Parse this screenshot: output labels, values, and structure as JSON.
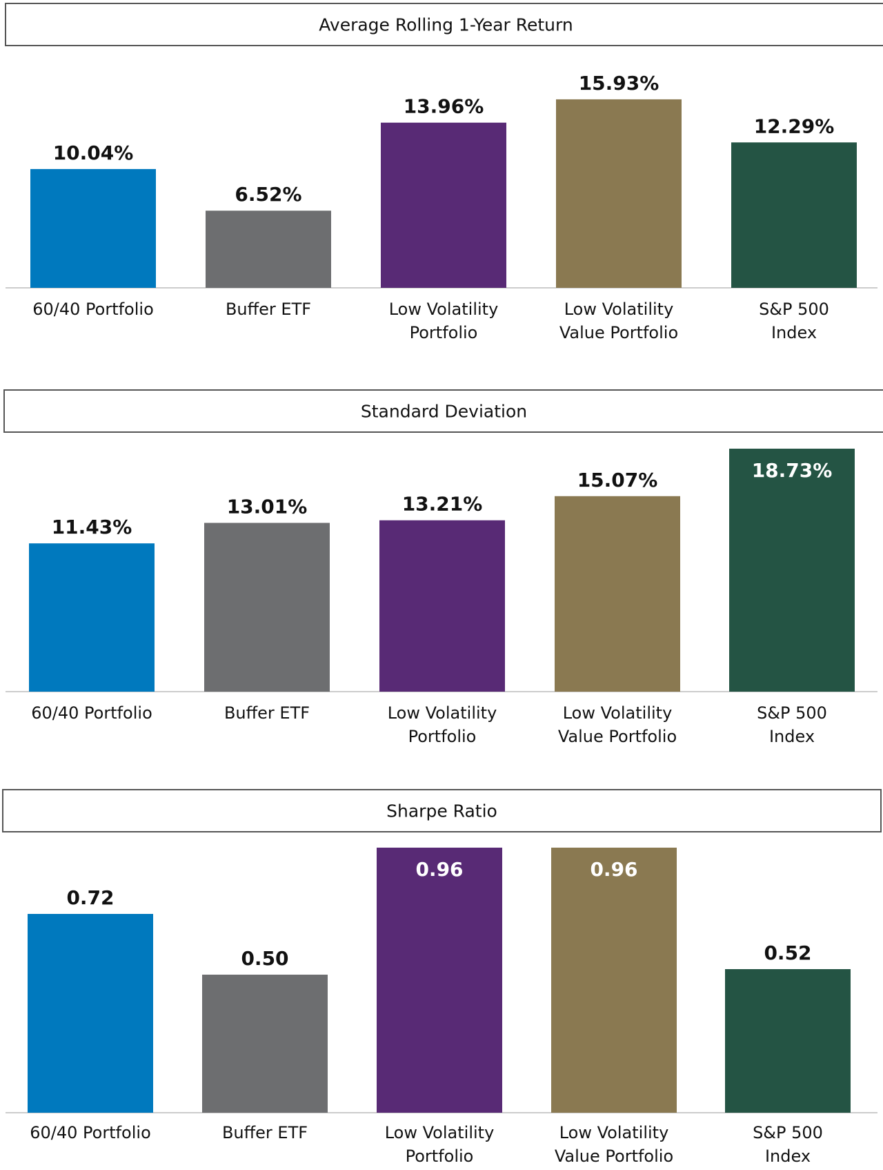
{
  "colors": {
    "portfolio_6040": "#0079BE",
    "buffer_etf": "#6D6E70",
    "low_vol": "#582A75",
    "low_vol_value": "#8A7951",
    "sp500": "#245444",
    "title_border": "#555555",
    "baseline": "#cccccc"
  },
  "chart_data": [
    {
      "type": "bar",
      "title": "Average Rolling 1-Year Return",
      "categories": [
        "60/40 Portfolio",
        "Buffer ETF",
        "Low Volatility Portfolio",
        "Low Volatility Value Portfolio",
        "S&P 500 Index"
      ],
      "category_lines": [
        [
          "60/40 Portfolio"
        ],
        [
          "Buffer ETF"
        ],
        [
          "Low Volatility",
          "Portfolio"
        ],
        [
          "Low Volatility",
          "Value Portfolio"
        ],
        [
          "S&P 500",
          "Index"
        ]
      ],
      "values": [
        10.04,
        6.52,
        13.96,
        15.93,
        12.29
      ],
      "value_labels": [
        "10.04%",
        "6.52%",
        "13.96%",
        "15.93%",
        "12.29%"
      ],
      "ylim": [
        0,
        17.5
      ],
      "grid": false,
      "legend": "none"
    },
    {
      "type": "bar",
      "title": "Standard Deviation",
      "categories": [
        "60/40 Portfolio",
        "Buffer ETF",
        "Low Volatility Portfolio",
        "Low Volatility Value Portfolio",
        "S&P 500 Index"
      ],
      "category_lines": [
        [
          "60/40 Portfolio"
        ],
        [
          "Buffer ETF"
        ],
        [
          "Low Volatility",
          "Portfolio"
        ],
        [
          "Low Volatility",
          "Value Portfolio"
        ],
        [
          "S&P 500",
          "Index"
        ]
      ],
      "values": [
        11.43,
        13.01,
        13.21,
        15.07,
        18.73
      ],
      "value_labels": [
        "11.43%",
        "13.01%",
        "13.21%",
        "15.07%",
        "18.73%"
      ],
      "ylim": [
        0,
        18.73
      ],
      "grid": false,
      "legend": "none"
    },
    {
      "type": "bar",
      "title": "Sharpe Ratio",
      "categories": [
        "60/40 Portfolio",
        "Buffer ETF",
        "Low Volatility Portfolio",
        "Low Volatility Value Portfolio",
        "S&P 500 Index"
      ],
      "category_lines": [
        [
          "60/40 Portfolio"
        ],
        [
          "Buffer ETF"
        ],
        [
          "Low Volatility",
          "Portfolio"
        ],
        [
          "Low Volatility",
          "Value Portfolio"
        ],
        [
          "S&P 500",
          "Index"
        ]
      ],
      "values": [
        0.72,
        0.5,
        0.96,
        0.96,
        0.52
      ],
      "value_labels": [
        "0.72",
        "0.50",
        "0.96",
        "0.96",
        "0.52"
      ],
      "ylim": [
        0,
        0.96
      ],
      "grid": false,
      "legend": "none"
    }
  ]
}
